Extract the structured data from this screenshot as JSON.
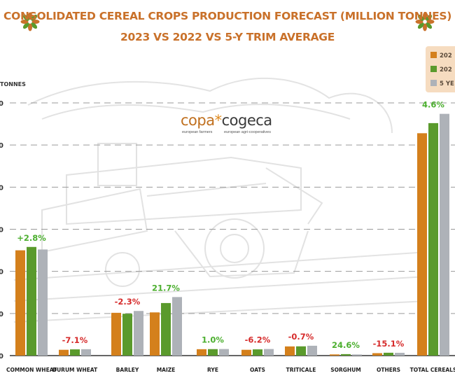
{
  "title": {
    "line1": "CONSOLIDATED CEREAL CROPS PRODUCTION FORECAST (MILLION TONNES)",
    "line2": "2023 VS 2022 VS 5-Y TRIM AVERAGE"
  },
  "unit_label": "TONNES",
  "logo": {
    "left": "copa",
    "star": "*",
    "right": "cogeca",
    "sub_left": "european farmers",
    "sub_right": "european agri-cooperatives"
  },
  "legend": [
    "202",
    "202",
    "5 YE"
  ],
  "colors": {
    "series_2023": "#d4801c",
    "series_2022": "#5a9a2c",
    "series_avg": "#aeb2b8",
    "positive_label": "#4caf2f",
    "negative_label": "#d62b2b",
    "title": "#c9712a"
  },
  "chart_data": {
    "type": "bar",
    "categories": [
      "COMMON WHEAT",
      "DURUM WHEAT",
      "BARLEY",
      "MAIZE",
      "RYE",
      "OATS",
      "TRITICALE",
      "SORGHUM",
      "OTHERS",
      "TOTAL CEREALS"
    ],
    "series": [
      {
        "name": "202",
        "values": [
          125,
          6.9,
          50.8,
          51.3,
          7.6,
          6.9,
          10.9,
          1.41,
          2.9,
          264
        ]
      },
      {
        "name": "202",
        "values": [
          129,
          7.4,
          49.7,
          62.4,
          7.7,
          7.4,
          11.0,
          1.76,
          3.4,
          276
        ]
      },
      {
        "name": "5 YE",
        "values": [
          126,
          7.6,
          53.0,
          69.5,
          7.8,
          7.8,
          11.7,
          1.37,
          3.3,
          287
        ]
      }
    ],
    "change_labels": [
      "+2.8%",
      "-7.1%",
      "-2.3%",
      "21.7%",
      "1.0%",
      "-6.2%",
      "-0.7%",
      "24.6%",
      "-15.1%",
      "4.6%"
    ],
    "ylim": [
      0,
      300
    ],
    "y_ticks": [
      "0",
      "50",
      "100",
      "150",
      "200",
      "250",
      "300"
    ],
    "y_tick_labels": [
      "0",
      "0",
      "0",
      "0",
      "0",
      "0",
      "0"
    ],
    "grid": true,
    "legend_position": "top-right"
  }
}
